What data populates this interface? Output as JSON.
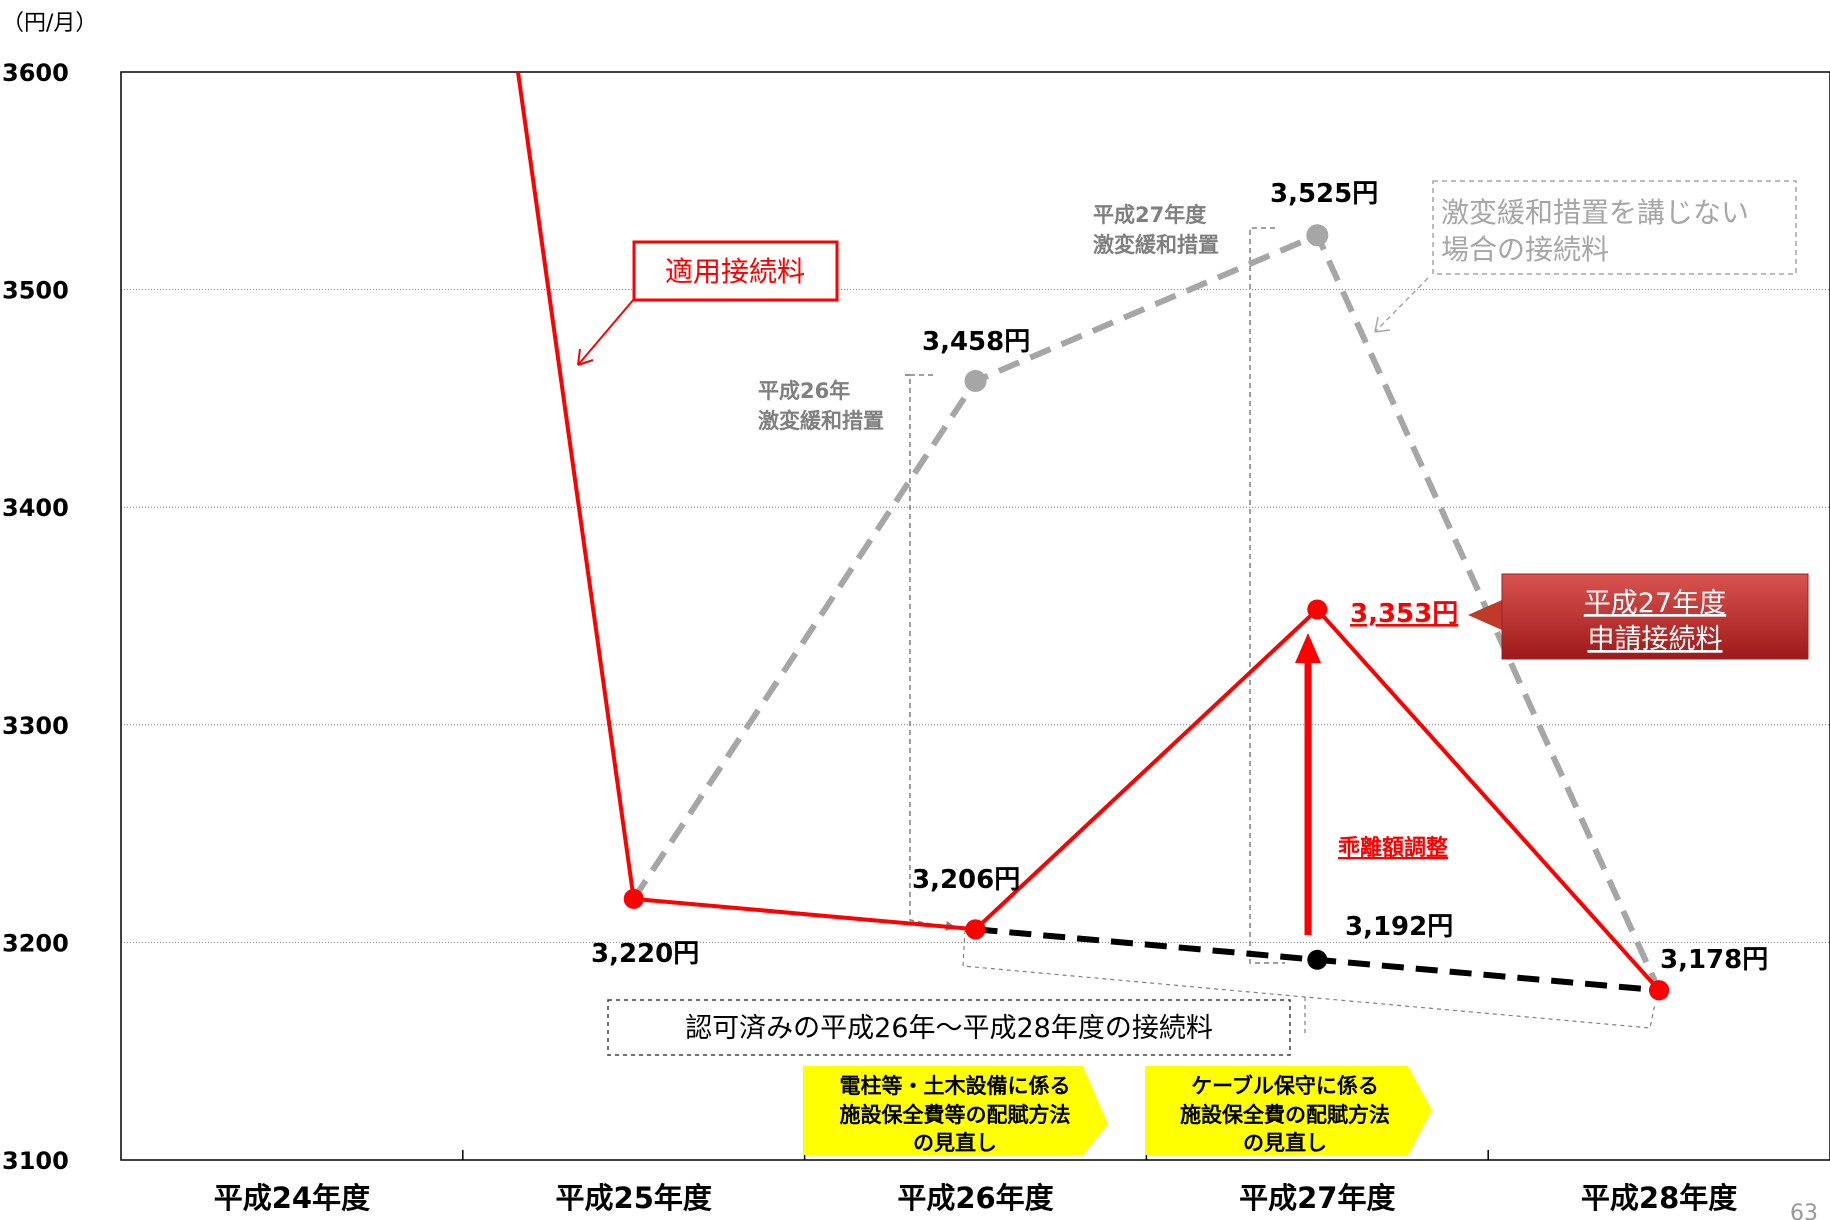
{
  "chart_data": {
    "type": "line",
    "unit": "（円/月）",
    "yticks": [
      3100,
      3200,
      3300,
      3400,
      3500,
      3600
    ],
    "ylim": [
      3100,
      3600
    ],
    "categories": [
      "平成24年度",
      "平成25年度",
      "平成26年度",
      "平成27年度",
      "平成28年度"
    ],
    "series": [
      {
        "name": "適用接続料",
        "color": "#ff0000",
        "points": [
          {
            "x": "平成24年度",
            "y": 3600
          },
          {
            "x": "平成25年度",
            "y": 3220,
            "label": "3,220円"
          },
          {
            "x": "平成26年度",
            "y": 3206,
            "label": "3,206円"
          },
          {
            "x": "平成27年度",
            "y": 3353,
            "label": "3,353円"
          },
          {
            "x": "平成28年度",
            "y": 3178
          }
        ]
      },
      {
        "name": "激変緩和措置を講じない場合の接続料",
        "color": "#a6a6a6",
        "points": [
          {
            "x": "平成25年度",
            "y": 3220
          },
          {
            "x": "平成26年度",
            "y": 3458,
            "label": "3,458円"
          },
          {
            "x": "平成27年度",
            "y": 3525,
            "label": "3,525円"
          },
          {
            "x": "平成28年度",
            "y": 3178
          }
        ]
      },
      {
        "name": "認可済みの平成26年～平成28年度の接続料",
        "color": "#000000",
        "points": [
          {
            "x": "平成26年度",
            "y": 3206
          },
          {
            "x": "平成27年度",
            "y": 3192,
            "label": "3,192円"
          },
          {
            "x": "平成28年度",
            "y": 3178,
            "label": "3,178円"
          }
        ]
      }
    ],
    "annotations": {
      "applied_rate": "適用接続料",
      "no_mitigation": [
        "激変緩和措置を講じない",
        "場合の接続料"
      ],
      "h26_mitigation": [
        "平成26年",
        "激変緩和措置"
      ],
      "h27_mitigation": [
        "平成27年度",
        "激変緩和措置"
      ],
      "h27_application": [
        "平成27年度",
        "申請接続料"
      ],
      "deviation": "乖離額調整",
      "approved": "認可済みの平成26年～平成28年度の接続料",
      "review_pole": [
        "電柱等・土木設備に係る",
        "施設保全費等の配賦方法",
        "の見直し"
      ],
      "review_cable": [
        "ケーブル保守に係る",
        "施設保全費の配賦方法",
        "の見直し"
      ]
    },
    "page_number": "63"
  }
}
